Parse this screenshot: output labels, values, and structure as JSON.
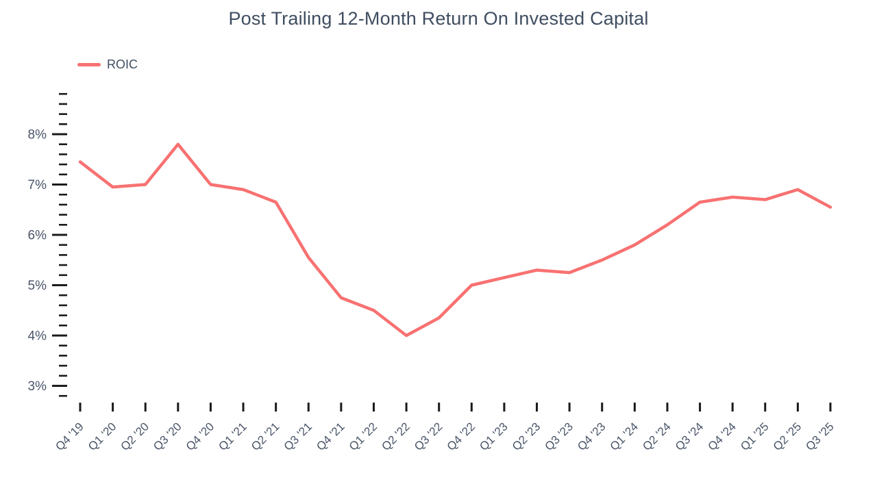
{
  "title": "Post Trailing 12-Month Return On Invested Capital",
  "legend": {
    "label": "ROIC",
    "swatch_color": "#f87171"
  },
  "colors": {
    "line": "#f87171",
    "title_text": "#3f4d60",
    "axis_label": "#4a5568",
    "tick_mark": "#1a1a1a",
    "background": "#ffffff"
  },
  "chart_data": {
    "type": "line",
    "title": "Post Trailing 12-Month Return On Invested Capital",
    "xlabel": "",
    "ylabel": "",
    "grid": false,
    "legend_position": "top-left",
    "categories": [
      "Q4 '19",
      "Q1 '20",
      "Q2 '20",
      "Q3 '20",
      "Q4 '20",
      "Q1 '21",
      "Q2 '21",
      "Q3 '21",
      "Q4 '21",
      "Q1 '22",
      "Q2 '22",
      "Q3 '22",
      "Q4 '22",
      "Q1 '23",
      "Q2 '23",
      "Q3 '23",
      "Q4 '23",
      "Q1 '24",
      "Q2 '24",
      "Q3 '24",
      "Q4 '24",
      "Q1 '25",
      "Q2 '25",
      "Q3 '25"
    ],
    "series": [
      {
        "name": "ROIC",
        "color": "#f87171",
        "values": [
          7.45,
          6.95,
          7.0,
          7.8,
          7.0,
          6.9,
          6.65,
          5.55,
          4.75,
          4.5,
          4.0,
          4.35,
          5.0,
          5.15,
          5.3,
          5.25,
          5.5,
          5.8,
          6.2,
          6.65,
          6.75,
          6.7,
          6.9,
          6.55
        ]
      }
    ],
    "y_axis": {
      "unit": "%",
      "major_ticks": [
        3,
        4,
        5,
        6,
        7,
        8
      ],
      "major_tick_labels": [
        "3%",
        "4%",
        "5%",
        "6%",
        "7%",
        "8%"
      ],
      "minor_tick_interval": 0.2,
      "axis_min": 2.8,
      "axis_max": 8.8
    }
  }
}
